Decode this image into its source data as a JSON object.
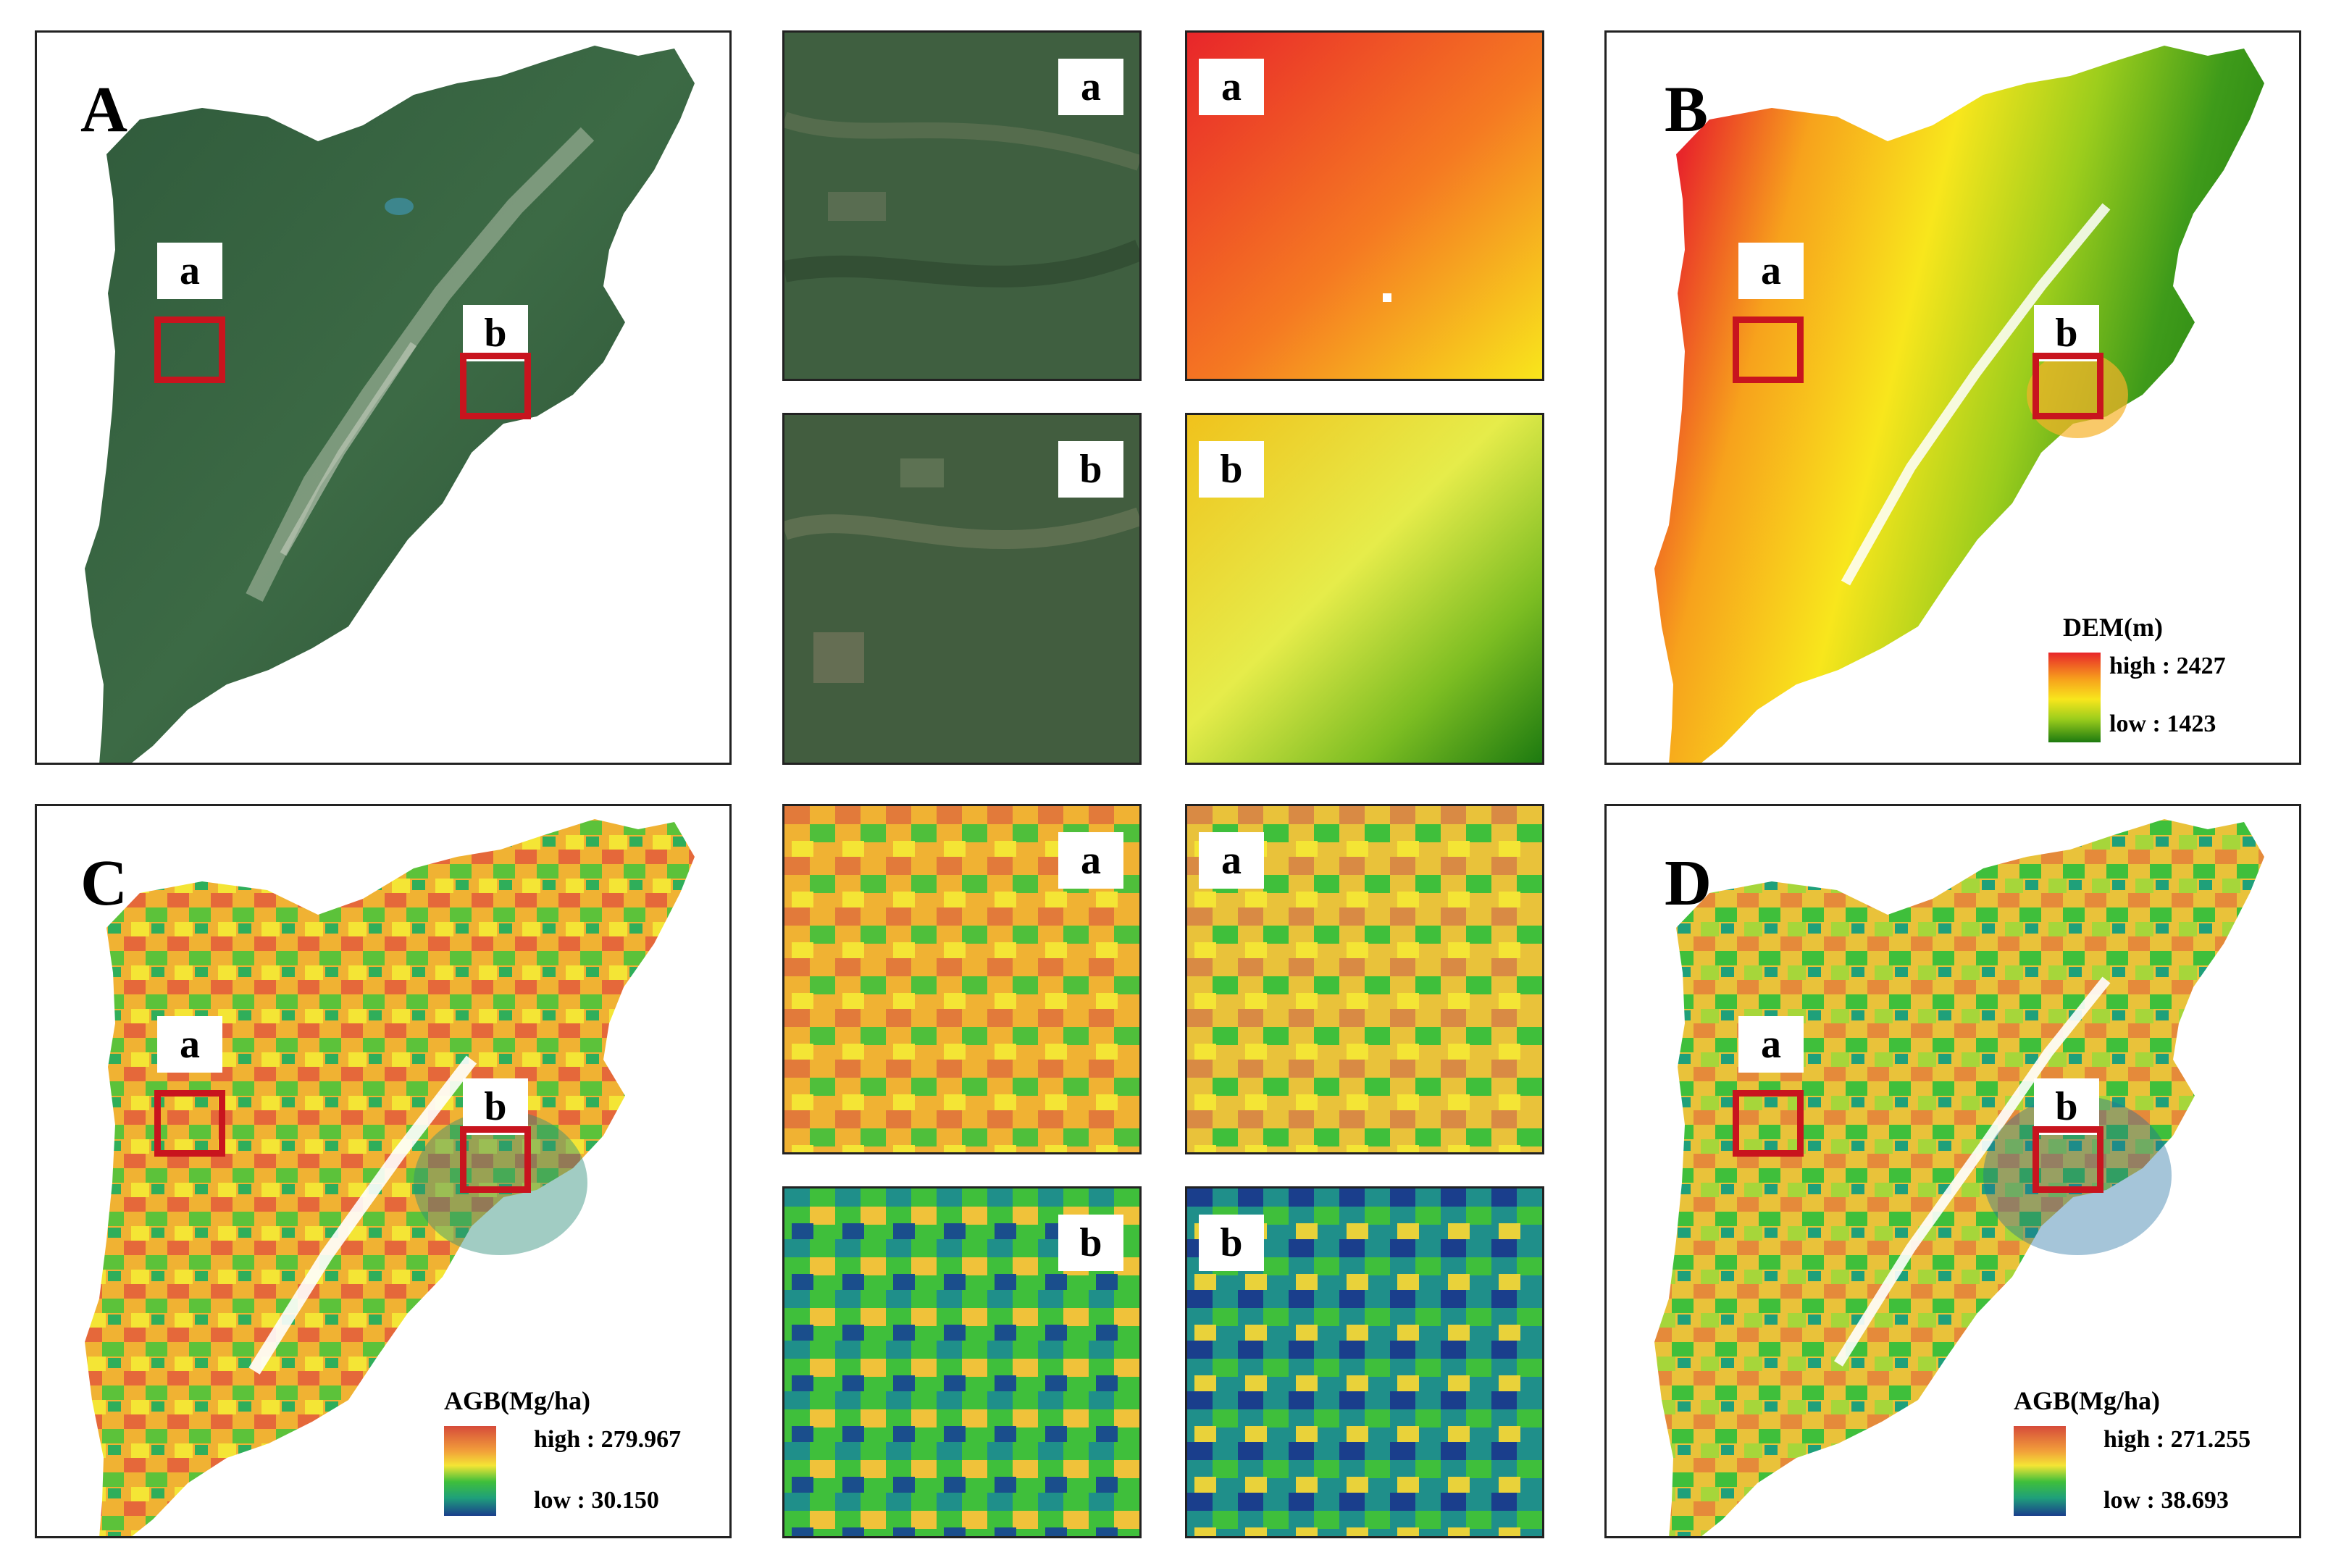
{
  "panels": {
    "A": {
      "letter": "A",
      "tags": [
        "a",
        "b"
      ]
    },
    "B": {
      "letter": "B",
      "tags": [
        "a",
        "b"
      ],
      "legend": {
        "title": "DEM(m)",
        "high": "high : 2427",
        "low": "low : 1423",
        "ramp": [
          "#e8262a",
          "#f7a21c",
          "#f8e61c",
          "#9ccd1c",
          "#1d7a10"
        ]
      }
    },
    "C": {
      "letter": "C",
      "tags": [
        "a",
        "b"
      ],
      "legend": {
        "title": "AGB(Mg/ha)",
        "high": "high : 279.967",
        "low": "low : 30.150",
        "ramp": [
          "#d64b3a",
          "#f2a03a",
          "#f4e535",
          "#3fbf3b",
          "#1fa07a",
          "#1a3e8c"
        ]
      }
    },
    "D": {
      "letter": "D",
      "tags": [
        "a",
        "b"
      ],
      "legend": {
        "title": "AGB(Mg/ha)",
        "high": "high : 271.255",
        "low": "low : 38.693",
        "ramp": [
          "#d64b3a",
          "#f2a03a",
          "#f4e535",
          "#3fbf3b",
          "#1fa07a",
          "#1a3e8c"
        ]
      }
    }
  },
  "insets": {
    "row1": {
      "satellite_a": "a",
      "dem_a": "a",
      "satellite_b": "b",
      "dem_b": "b"
    },
    "row2": {
      "agb_c_a": "a",
      "agb_d_a": "a",
      "agb_c_b": "b",
      "agb_d_b": "b"
    }
  },
  "colors": {
    "roi_box": "#c8141e",
    "frame": "#222222"
  }
}
